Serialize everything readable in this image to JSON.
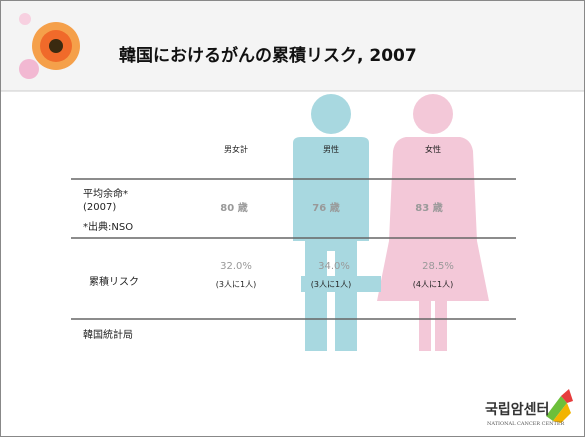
{
  "header": {
    "title": "韓国におけるがんの累積リスク, 2007"
  },
  "table": {
    "columns": [
      "男女計",
      "男性",
      "女性"
    ],
    "rows": [
      {
        "label": [
          "平均余命*",
          "(2007)",
          "*出典:NSO"
        ],
        "cells": [
          {
            "value": "80 歳"
          },
          {
            "value": "76 歳"
          },
          {
            "value": "83 歳"
          }
        ]
      },
      {
        "label": [
          "累積リスク"
        ],
        "cells": [
          {
            "value": "32.0%",
            "note": "(3人に1人)"
          },
          {
            "value": "34.0%",
            "note": "(3人に1人)"
          },
          {
            "value": "28.5%",
            "note": "(4人に1人)"
          }
        ]
      }
    ]
  },
  "source": "韓国統計局",
  "logo": {
    "name": "국립암센터",
    "subtitle": "NATIONAL CANCER CENTER"
  }
}
